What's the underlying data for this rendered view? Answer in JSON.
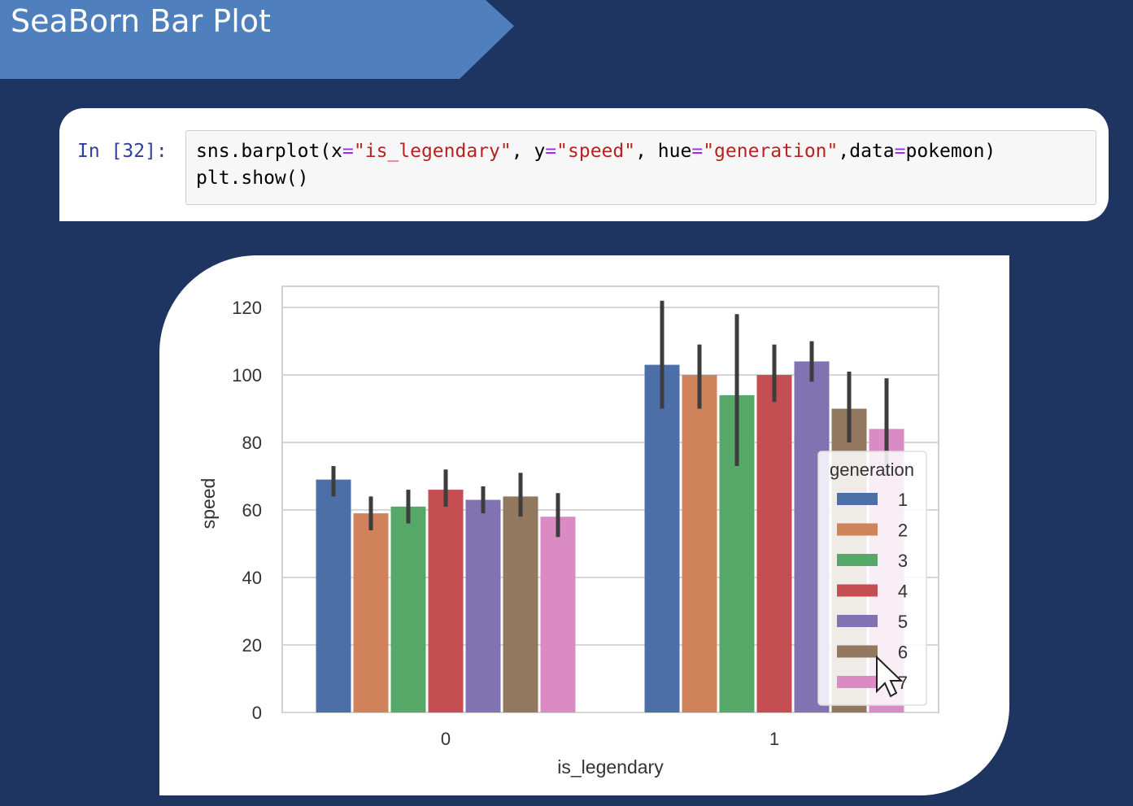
{
  "slide": {
    "title": "SeaBorn Bar Plot"
  },
  "code_cell": {
    "prompt": "In [32]:",
    "line1": {
      "p1": "sns.barplot(x",
      "eq": "=",
      "s1": "\"is_legendary\"",
      "p2": ", y",
      "s2": "\"speed\"",
      "p3": ", hue",
      "s3": "\"generation\"",
      "p4": ",data",
      "p5": "pokemon)"
    },
    "line2": "plt.show()"
  },
  "chart_data": {
    "type": "bar",
    "categories": [
      "0",
      "1"
    ],
    "xlabel": "is_legendary",
    "ylabel": "speed",
    "ylim": [
      0,
      120
    ],
    "yticks": [
      0,
      20,
      40,
      60,
      80,
      100,
      120
    ],
    "grid": true,
    "legend": {
      "title": "generation",
      "placement": "right"
    },
    "series": [
      {
        "name": "1",
        "color": "#4c6fa8",
        "values": [
          69,
          103
        ],
        "ci": [
          [
            64,
            73
          ],
          [
            90,
            122
          ]
        ]
      },
      {
        "name": "2",
        "color": "#d0825a",
        "values": [
          59,
          100
        ],
        "ci": [
          [
            54,
            64
          ],
          [
            90,
            109
          ]
        ]
      },
      {
        "name": "3",
        "color": "#55a868",
        "values": [
          61,
          94
        ],
        "ci": [
          [
            56,
            66
          ],
          [
            73,
            118
          ]
        ]
      },
      {
        "name": "4",
        "color": "#c44e52",
        "values": [
          66,
          100
        ],
        "ci": [
          [
            61,
            72
          ],
          [
            92,
            109
          ]
        ]
      },
      {
        "name": "5",
        "color": "#8172b2",
        "values": [
          63,
          104
        ],
        "ci": [
          [
            59,
            67
          ],
          [
            98,
            110
          ]
        ]
      },
      {
        "name": "6",
        "color": "#937860",
        "values": [
          64,
          90
        ],
        "ci": [
          [
            58,
            71
          ],
          [
            80,
            101
          ]
        ]
      },
      {
        "name": "7",
        "color": "#da8bc3",
        "values": [
          58,
          84
        ],
        "ci": [
          [
            52,
            65
          ],
          [
            70,
            99
          ]
        ]
      }
    ]
  }
}
